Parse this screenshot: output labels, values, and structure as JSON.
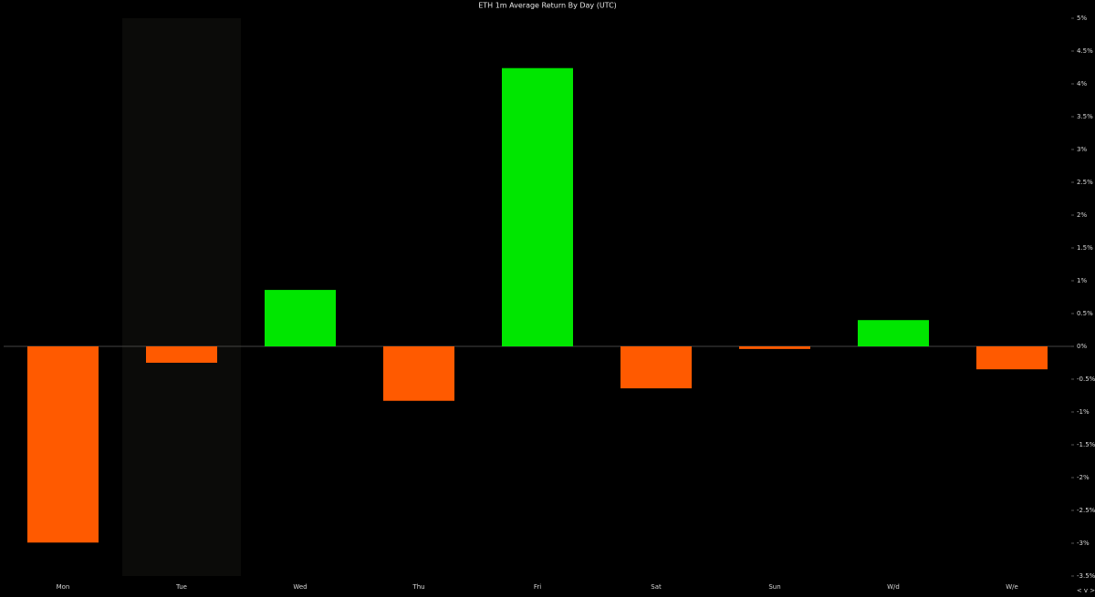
{
  "chart_data": {
    "type": "bar",
    "title": "ETH 1m Average Return By Day (UTC)",
    "categories": [
      "Mon",
      "Tue",
      "Wed",
      "Thu",
      "Fri",
      "Sat",
      "Sun",
      "W/d",
      "W/e"
    ],
    "values": [
      -2.99,
      -0.25,
      0.86,
      -0.83,
      4.24,
      -0.64,
      -0.04,
      0.4,
      -0.35
    ],
    "colors": {
      "positive": "#00e600",
      "negative": "#ff5a00"
    },
    "highlighted": "Tue",
    "ylim": [
      -3.5,
      5
    ],
    "yticks": [
      {
        "value": 5,
        "label": "5%"
      },
      {
        "value": 4.5,
        "label": "4.5%"
      },
      {
        "value": 4,
        "label": "4%"
      },
      {
        "value": 3.5,
        "label": "3.5%"
      },
      {
        "value": 3,
        "label": "3%"
      },
      {
        "value": 2.5,
        "label": "2.5%"
      },
      {
        "value": 2,
        "label": "2%"
      },
      {
        "value": 1.5,
        "label": "1.5%"
      },
      {
        "value": 1,
        "label": "1%"
      },
      {
        "value": 0.5,
        "label": "0.5%"
      },
      {
        "value": 0,
        "label": "0%"
      },
      {
        "value": -0.5,
        "label": "-0.5%"
      },
      {
        "value": -1,
        "label": "-1%"
      },
      {
        "value": -1.5,
        "label": "-1.5%"
      },
      {
        "value": -2,
        "label": "-2%"
      },
      {
        "value": -2.5,
        "label": "-2.5%"
      },
      {
        "value": -3,
        "label": "-3%"
      },
      {
        "value": -3.5,
        "label": "-3.5%"
      }
    ],
    "nav_label": "< v >"
  }
}
